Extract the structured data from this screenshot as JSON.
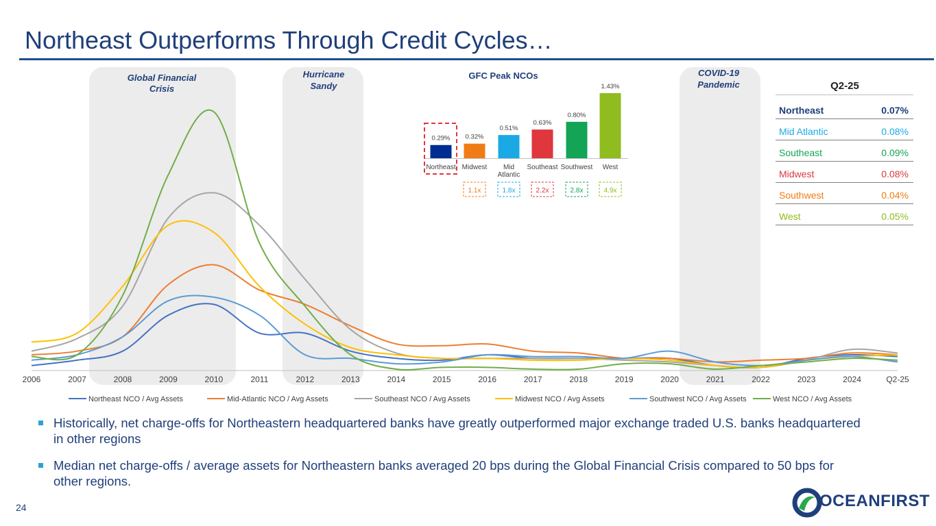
{
  "title": "Northeast Outperforms Through Credit Cycles…",
  "page_number": "24",
  "bullets": [
    "Historically, net charge-offs for Northeastern headquartered banks have greatly outperformed major exchange traded U.S. banks headquartered in other regions",
    "Median net charge-offs / average assets for Northeastern banks averaged 20 bps during the Global Financial Crisis compared to 50 bps for other regions."
  ],
  "logo": {
    "brand": "OCEANFIRST",
    "color": "#1f3f7a",
    "accent": "#2aa84a"
  },
  "chart_data": [
    {
      "type": "line",
      "title": "",
      "x": [
        "2006",
        "2007",
        "2008",
        "2009",
        "2010",
        "2011",
        "2012",
        "2013",
        "2014",
        "2015",
        "2016",
        "2017",
        "2018",
        "2019",
        "2020",
        "2021",
        "2022",
        "2023",
        "2024",
        "Q2-25"
      ],
      "ylim": [
        0,
        1.45
      ],
      "grid": false,
      "legend_position": "bottom",
      "series": [
        {
          "name": "Northeast NCO / Avg Assets",
          "color": "#4472c4",
          "values": [
            0.02,
            0.05,
            0.1,
            0.3,
            0.36,
            0.2,
            0.2,
            0.1,
            0.06,
            0.05,
            0.08,
            0.06,
            0.06,
            0.06,
            0.06,
            0.02,
            0.01,
            0.06,
            0.08,
            0.07
          ]
        },
        {
          "name": "Mid-Atlantic NCO / Avg Assets",
          "color": "#ed7d31",
          "values": [
            0.08,
            0.1,
            0.18,
            0.47,
            0.58,
            0.44,
            0.36,
            0.24,
            0.14,
            0.13,
            0.14,
            0.1,
            0.09,
            0.06,
            0.06,
            0.04,
            0.05,
            0.06,
            0.09,
            0.08
          ]
        },
        {
          "name": "Southeast NCO / Avg Assets",
          "color": "#a5a5a5",
          "values": [
            0.1,
            0.17,
            0.35,
            0.84,
            0.98,
            0.8,
            0.5,
            0.22,
            0.09,
            0.06,
            0.06,
            0.06,
            0.06,
            0.05,
            0.04,
            0.02,
            0.01,
            0.05,
            0.11,
            0.09
          ]
        },
        {
          "name": "Midwest NCO / Avg Assets",
          "color": "#ffc000",
          "values": [
            0.15,
            0.2,
            0.46,
            0.8,
            0.76,
            0.46,
            0.25,
            0.12,
            0.08,
            0.06,
            0.06,
            0.05,
            0.05,
            0.06,
            0.05,
            0.02,
            0.01,
            0.05,
            0.07,
            0.08
          ]
        },
        {
          "name": "Southwest NCO / Avg Assets",
          "color": "#5b9bd5",
          "values": [
            0.05,
            0.08,
            0.18,
            0.38,
            0.4,
            0.3,
            0.08,
            0.06,
            0.03,
            0.04,
            0.08,
            0.07,
            0.07,
            0.06,
            0.1,
            0.04,
            0.02,
            0.05,
            0.07,
            0.04
          ]
        },
        {
          "name": "West NCO / Avg Assets",
          "color": "#70ad47",
          "values": [
            0.07,
            0.08,
            0.41,
            1.08,
            1.43,
            0.7,
            0.35,
            0.08,
            0.0,
            0.01,
            0.01,
            0.0,
            0.0,
            0.03,
            0.03,
            0.0,
            0.02,
            0.04,
            0.06,
            0.05
          ]
        }
      ],
      "shaded_periods": [
        {
          "label": "Global Financial Crisis",
          "line1": "Global Financial",
          "line2": "Crisis"
        },
        {
          "label": "Hurricane Sandy",
          "line1": "Hurricane",
          "line2": "Sandy"
        },
        {
          "label": "COVID-19 Pandemic",
          "line1": "COVID-19",
          "line2": "Pandemic"
        }
      ]
    },
    {
      "type": "bar",
      "title": "GFC Peak NCOs",
      "categories": [
        [
          "Northeast"
        ],
        [
          "Midwest"
        ],
        [
          "Mid",
          "Atlantic"
        ],
        [
          "Southeast"
        ],
        [
          "Southwest"
        ],
        [
          "West"
        ]
      ],
      "values": [
        0.29,
        0.32,
        0.51,
        0.63,
        0.8,
        1.43
      ],
      "data_labels": [
        "0.29%",
        "0.32%",
        "0.51%",
        "0.63%",
        "0.80%",
        "1.43%"
      ],
      "colors": [
        "#002d8f",
        "#f07c16",
        "#1ba9e6",
        "#e0363d",
        "#13a456",
        "#8fbc1f"
      ],
      "multiples": [
        "",
        "1.1x",
        "1.8x",
        "2.2x",
        "2.8x",
        "4.9x"
      ],
      "ylim": [
        0,
        1.5
      ]
    },
    {
      "type": "table",
      "title": "Q2-25",
      "rows": [
        {
          "region": "Northeast",
          "value": "0.07%",
          "color": "#1f3f7a",
          "bold": true
        },
        {
          "region": "Mid Atlantic",
          "value": "0.08%",
          "color": "#1ba9e6",
          "bold": false
        },
        {
          "region": "Southeast",
          "value": "0.09%",
          "color": "#13a456",
          "bold": false
        },
        {
          "region": "Midwest",
          "value": "0.08%",
          "color": "#e0363d",
          "bold": false
        },
        {
          "region": "Southwest",
          "value": "0.04%",
          "color": "#f07c16",
          "bold": false
        },
        {
          "region": "West",
          "value": "0.05%",
          "color": "#8fbc1f",
          "bold": false
        }
      ]
    }
  ]
}
